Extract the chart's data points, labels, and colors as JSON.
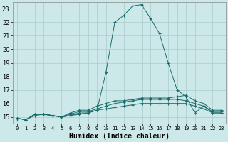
{
  "xlabel": "Humidex (Indice chaleur)",
  "ylabel": "",
  "bg_color": "#cce8e8",
  "grid_color": "#aacccc",
  "line_color": "#1a6b6b",
  "xlim": [
    -0.5,
    23.5
  ],
  "ylim": [
    14.5,
    23.5
  ],
  "yticks": [
    15,
    16,
    17,
    18,
    19,
    20,
    21,
    22,
    23
  ],
  "xticks": [
    0,
    1,
    2,
    3,
    4,
    5,
    6,
    7,
    8,
    9,
    10,
    11,
    12,
    13,
    14,
    15,
    16,
    17,
    18,
    19,
    20,
    21,
    22,
    23
  ],
  "xtick_labels": [
    "0",
    "1",
    "2",
    "3",
    "4",
    "5",
    "6",
    "7",
    "8",
    "9",
    "10",
    "11",
    "12",
    "13",
    "14",
    "15",
    "16",
    "17",
    "18",
    "19",
    "20",
    "21",
    "22",
    "23"
  ],
  "series": [
    {
      "x": [
        0,
        1,
        2,
        3,
        4,
        5,
        6,
        7,
        8,
        9,
        10,
        11,
        12,
        13,
        14,
        15,
        16,
        17,
        18,
        19,
        20,
        21,
        22,
        23
      ],
      "y": [
        14.9,
        14.8,
        15.2,
        15.2,
        15.1,
        15.0,
        15.1,
        15.2,
        15.3,
        15.5,
        18.3,
        22.0,
        22.5,
        23.2,
        23.3,
        22.3,
        21.2,
        19.0,
        17.0,
        16.5,
        15.3,
        15.8,
        15.3,
        15.3
      ]
    },
    {
      "x": [
        0,
        1,
        2,
        3,
        4,
        5,
        6,
        7,
        8,
        9,
        10,
        11,
        12,
        13,
        14,
        15,
        16,
        17,
        18,
        19,
        20,
        21,
        22,
        23
      ],
      "y": [
        14.9,
        14.8,
        15.2,
        15.2,
        15.1,
        15.0,
        15.3,
        15.5,
        15.5,
        15.8,
        16.0,
        16.2,
        16.2,
        16.3,
        16.4,
        16.4,
        16.4,
        16.4,
        16.5,
        16.6,
        16.2,
        16.0,
        15.5,
        15.5
      ]
    },
    {
      "x": [
        0,
        1,
        2,
        3,
        4,
        5,
        6,
        7,
        8,
        9,
        10,
        11,
        12,
        13,
        14,
        15,
        16,
        17,
        18,
        19,
        20,
        21,
        22,
        23
      ],
      "y": [
        14.9,
        14.8,
        15.2,
        15.2,
        15.1,
        15.0,
        15.2,
        15.4,
        15.4,
        15.6,
        15.8,
        16.0,
        16.1,
        16.2,
        16.3,
        16.3,
        16.3,
        16.3,
        16.3,
        16.2,
        16.0,
        15.8,
        15.4,
        15.4
      ]
    },
    {
      "x": [
        0,
        1,
        2,
        3,
        4,
        5,
        6,
        7,
        8,
        9,
        10,
        11,
        12,
        13,
        14,
        15,
        16,
        17,
        18,
        19,
        20,
        21,
        22,
        23
      ],
      "y": [
        14.9,
        14.8,
        15.1,
        15.2,
        15.1,
        15.0,
        15.1,
        15.3,
        15.3,
        15.5,
        15.6,
        15.7,
        15.8,
        15.9,
        16.0,
        16.0,
        16.0,
        16.0,
        16.0,
        16.0,
        15.8,
        15.6,
        15.3,
        15.3
      ]
    }
  ]
}
